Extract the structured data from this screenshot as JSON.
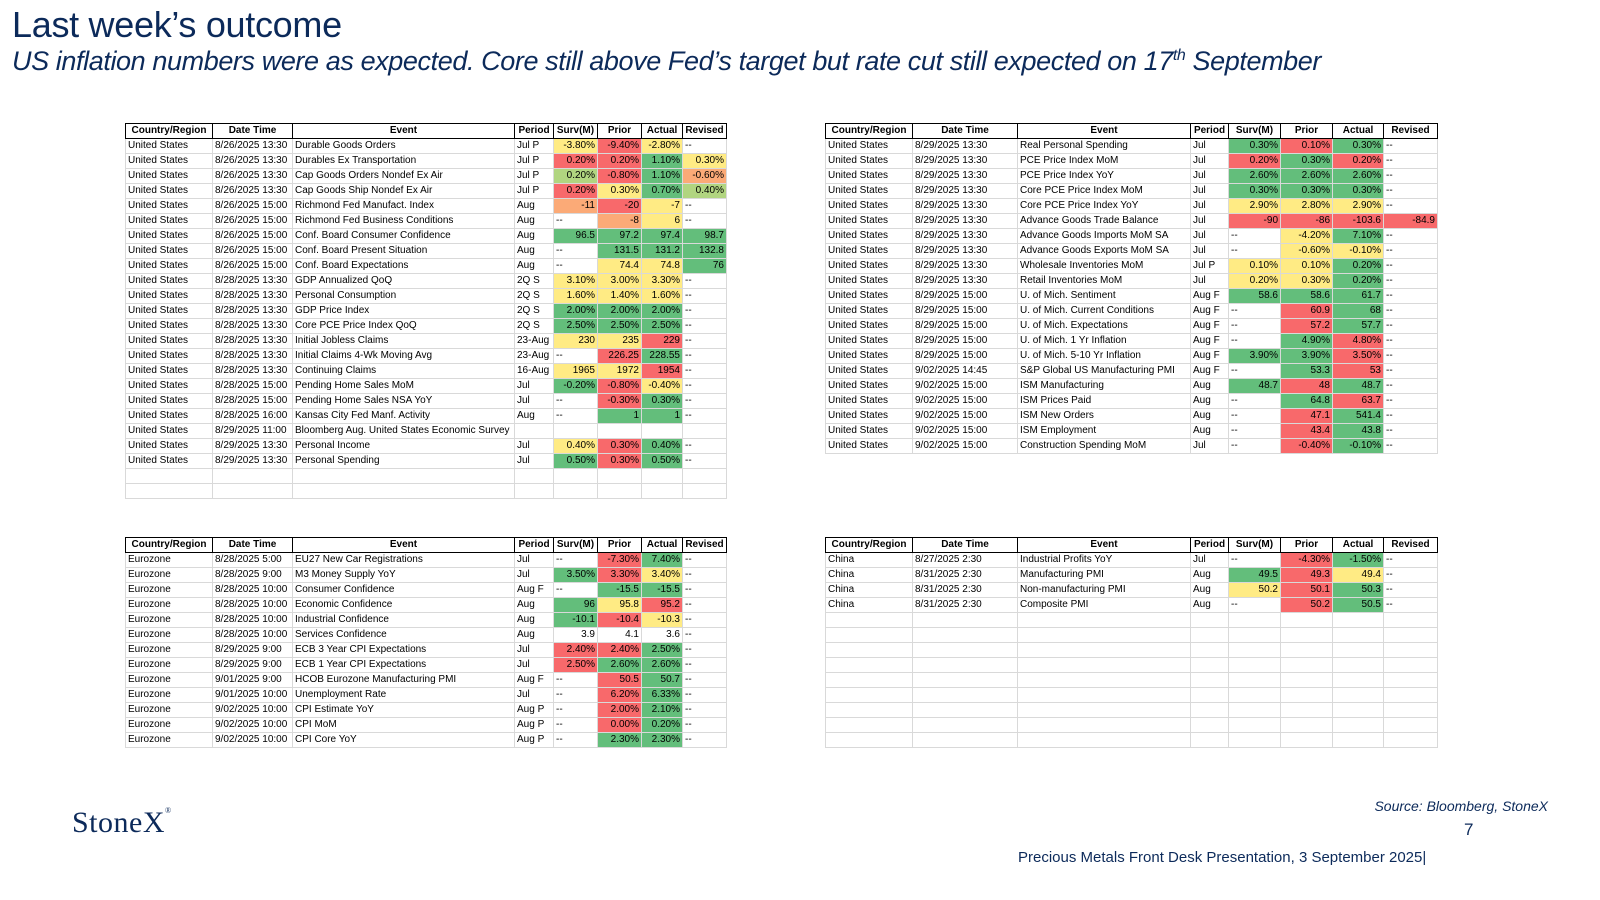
{
  "header": {
    "title": "Last week’s outcome",
    "subtitle_main": "US inflation numbers were as expected. Core still above  Fed’s target but rate cut still expected on 17",
    "subtitle_sup": "th",
    "subtitle_end": " September"
  },
  "columns": [
    "Country/Region",
    "Date Time",
    "Event",
    "Period",
    "Surv(M)",
    "Prior",
    "Actual",
    "Revised"
  ],
  "tables": [
    {
      "rows": [
        [
          "United States",
          "8/26/2025 13:30",
          "Durable Goods Orders",
          "Jul P",
          "-3.80%",
          "-9.40%",
          "-2.80%",
          "--"
        ],
        [
          "United States",
          "8/26/2025 13:30",
          "Durables Ex Transportation",
          "Jul P",
          "0.20%",
          "0.20%",
          "1.10%",
          "0.30%"
        ],
        [
          "United States",
          "8/26/2025 13:30",
          "Cap Goods Orders Nondef Ex Air",
          "Jul P",
          "0.20%",
          "-0.80%",
          "1.10%",
          "-0.60%"
        ],
        [
          "United States",
          "8/26/2025 13:30",
          "Cap Goods Ship Nondef Ex Air",
          "Jul P",
          "0.20%",
          "0.30%",
          "0.70%",
          "0.40%"
        ],
        [
          "United States",
          "8/26/2025 15:00",
          "Richmond Fed Manufact. Index",
          "Aug",
          "-11",
          "-20",
          "-7",
          "--"
        ],
        [
          "United States",
          "8/26/2025 15:00",
          "Richmond Fed Business Conditions",
          "Aug",
          "--",
          "-8",
          "6",
          "--"
        ],
        [
          "United States",
          "8/26/2025 15:00",
          "Conf. Board Consumer Confidence",
          "Aug",
          "96.5",
          "97.2",
          "97.4",
          "98.7"
        ],
        [
          "United States",
          "8/26/2025 15:00",
          "Conf. Board Present Situation",
          "Aug",
          "--",
          "131.5",
          "131.2",
          "132.8"
        ],
        [
          "United States",
          "8/26/2025 15:00",
          "Conf. Board Expectations",
          "Aug",
          "--",
          "74.4",
          "74.8",
          "76"
        ],
        [
          "United States",
          "8/28/2025 13:30",
          "GDP Annualized QoQ",
          "2Q S",
          "3.10%",
          "3.00%",
          "3.30%",
          "--"
        ],
        [
          "United States",
          "8/28/2025 13:30",
          "Personal Consumption",
          "2Q S",
          "1.60%",
          "1.40%",
          "1.60%",
          "--"
        ],
        [
          "United States",
          "8/28/2025 13:30",
          "GDP Price Index",
          "2Q S",
          "2.00%",
          "2.00%",
          "2.00%",
          "--"
        ],
        [
          "United States",
          "8/28/2025 13:30",
          "Core PCE Price Index QoQ",
          "2Q S",
          "2.50%",
          "2.50%",
          "2.50%",
          "--"
        ],
        [
          "United States",
          "8/28/2025 13:30",
          "Initial Jobless Claims",
          "23-Aug",
          "230",
          "235",
          "229",
          "--"
        ],
        [
          "United States",
          "8/28/2025 13:30",
          "Initial Claims 4-Wk Moving Avg",
          "23-Aug",
          "--",
          "226.25",
          "228.55",
          "--"
        ],
        [
          "United States",
          "8/28/2025 13:30",
          "Continuing Claims",
          "16-Aug",
          "1965",
          "1972",
          "1954",
          "--"
        ],
        [
          "United States",
          "8/28/2025 15:00",
          "Pending Home Sales MoM",
          "Jul",
          "-0.20%",
          "-0.80%",
          "-0.40%",
          "--"
        ],
        [
          "United States",
          "8/28/2025 15:00",
          "Pending Home Sales NSA YoY",
          "Jul",
          "--",
          "-0.30%",
          "0.30%",
          "--"
        ],
        [
          "United States",
          "8/28/2025 16:00",
          "Kansas City Fed Manf. Activity",
          "Aug",
          "--",
          "1",
          "1",
          "--"
        ],
        [
          "United States",
          "8/29/2025 11:00",
          "Bloomberg Aug. United States Economic Survey",
          "",
          "",
          "",
          "",
          ""
        ],
        [
          "United States",
          "8/29/2025 13:30",
          "Personal Income",
          "Jul",
          "0.40%",
          "0.30%",
          "0.40%",
          "--"
        ],
        [
          "United States",
          "8/29/2025 13:30",
          "Personal Spending",
          "Jul",
          "0.50%",
          "0.30%",
          "0.50%",
          "--"
        ]
      ],
      "colors": [
        [
          "y",
          "r",
          "y",
          ""
        ],
        [
          "r",
          "r",
          "g",
          "y"
        ],
        [
          "lg",
          "r",
          "g",
          "o"
        ],
        [
          "r",
          "y",
          "g",
          "lg"
        ],
        [
          "o",
          "r",
          "y",
          ""
        ],
        [
          "",
          "o",
          "y",
          ""
        ],
        [
          "g",
          "g",
          "g",
          "g"
        ],
        [
          "",
          "g",
          "g",
          "g"
        ],
        [
          "",
          "y",
          "y",
          "g"
        ],
        [
          "y",
          "y",
          "y",
          ""
        ],
        [
          "y",
          "y",
          "y",
          ""
        ],
        [
          "g",
          "g",
          "g",
          ""
        ],
        [
          "g",
          "g",
          "g",
          ""
        ],
        [
          "y",
          "y",
          "r",
          ""
        ],
        [
          "",
          "r",
          "g",
          ""
        ],
        [
          "y",
          "y",
          "r",
          ""
        ],
        [
          "g",
          "r",
          "y",
          ""
        ],
        [
          "",
          "r",
          "g",
          ""
        ],
        [
          "",
          "g",
          "g",
          ""
        ],
        [
          "",
          "",
          "",
          ""
        ],
        [
          "y",
          "r",
          "g",
          ""
        ],
        [
          "g",
          "r",
          "g",
          ""
        ]
      ]
    },
    {
      "rows": [
        [
          "United States",
          "8/29/2025 13:30",
          "Real Personal Spending",
          "Jul",
          "0.30%",
          "0.10%",
          "0.30%",
          "--"
        ],
        [
          "United States",
          "8/29/2025 13:30",
          "PCE Price Index MoM",
          "Jul",
          "0.20%",
          "0.30%",
          "0.20%",
          "--"
        ],
        [
          "United States",
          "8/29/2025 13:30",
          "PCE Price Index YoY",
          "Jul",
          "2.60%",
          "2.60%",
          "2.60%",
          "--"
        ],
        [
          "United States",
          "8/29/2025 13:30",
          "Core PCE Price Index MoM",
          "Jul",
          "0.30%",
          "0.30%",
          "0.30%",
          "--"
        ],
        [
          "United States",
          "8/29/2025 13:30",
          "Core PCE Price Index YoY",
          "Jul",
          "2.90%",
          "2.80%",
          "2.90%",
          "--"
        ],
        [
          "United States",
          "8/29/2025 13:30",
          "Advance Goods Trade Balance",
          "Jul",
          "-90",
          "-86",
          "-103.6",
          "-84.9"
        ],
        [
          "United States",
          "8/29/2025 13:30",
          "Advance Goods Imports MoM SA",
          "Jul",
          "--",
          "-4.20%",
          "7.10%",
          "--"
        ],
        [
          "United States",
          "8/29/2025 13:30",
          "Advance Goods Exports MoM SA",
          "Jul",
          "--",
          "-0.60%",
          "-0.10%",
          "--"
        ],
        [
          "United States",
          "8/29/2025 13:30",
          "Wholesale Inventories MoM",
          "Jul P",
          "0.10%",
          "0.10%",
          "0.20%",
          "--"
        ],
        [
          "United States",
          "8/29/2025 13:30",
          "Retail Inventories MoM",
          "Jul",
          "0.20%",
          "0.30%",
          "0.20%",
          "--"
        ],
        [
          "United States",
          "8/29/2025 15:00",
          "U. of Mich. Sentiment",
          "Aug F",
          "58.6",
          "58.6",
          "61.7",
          "--"
        ],
        [
          "United States",
          "8/29/2025 15:00",
          "U. of Mich. Current Conditions",
          "Aug F",
          "--",
          "60.9",
          "68",
          "--"
        ],
        [
          "United States",
          "8/29/2025 15:00",
          "U. of Mich. Expectations",
          "Aug F",
          "--",
          "57.2",
          "57.7",
          "--"
        ],
        [
          "United States",
          "8/29/2025 15:00",
          "U. of Mich. 1 Yr Inflation",
          "Aug F",
          "--",
          "4.90%",
          "4.80%",
          "--"
        ],
        [
          "United States",
          "8/29/2025 15:00",
          "U. of Mich. 5-10 Yr Inflation",
          "Aug F",
          "3.90%",
          "3.90%",
          "3.50%",
          "--"
        ],
        [
          "United States",
          "9/02/2025 14:45",
          "S&P Global US Manufacturing PMI",
          "Aug F",
          "--",
          "53.3",
          "53",
          "--"
        ],
        [
          "United States",
          "9/02/2025 15:00",
          "ISM Manufacturing",
          "Aug",
          "48.7",
          "48",
          "48.7",
          "--"
        ],
        [
          "United States",
          "9/02/2025 15:00",
          "ISM Prices Paid",
          "Aug",
          "--",
          "64.8",
          "63.7",
          "--"
        ],
        [
          "United States",
          "9/02/2025 15:00",
          "ISM New Orders",
          "Aug",
          "--",
          "47.1",
          "541.4",
          "--"
        ],
        [
          "United States",
          "9/02/2025 15:00",
          "ISM Employment",
          "Aug",
          "--",
          "43.4",
          "43.8",
          "--"
        ],
        [
          "United States",
          "9/02/2025 15:00",
          "Construction Spending MoM",
          "Jul",
          "--",
          "-0.40%",
          "-0.10%",
          "--"
        ]
      ],
      "colors": [
        [
          "g",
          "r",
          "g",
          ""
        ],
        [
          "r",
          "g",
          "r",
          ""
        ],
        [
          "g",
          "g",
          "g",
          ""
        ],
        [
          "g",
          "g",
          "g",
          ""
        ],
        [
          "y",
          "y",
          "y",
          ""
        ],
        [
          "r",
          "r",
          "r",
          "r"
        ],
        [
          "",
          "y",
          "g",
          ""
        ],
        [
          "",
          "y",
          "y",
          ""
        ],
        [
          "y",
          "y",
          "g",
          ""
        ],
        [
          "y",
          "y",
          "g",
          ""
        ],
        [
          "g",
          "g",
          "g",
          ""
        ],
        [
          "",
          "r",
          "g",
          ""
        ],
        [
          "",
          "r",
          "g",
          ""
        ],
        [
          "",
          "g",
          "r",
          ""
        ],
        [
          "g",
          "g",
          "r",
          ""
        ],
        [
          "",
          "g",
          "r",
          ""
        ],
        [
          "g",
          "r",
          "g",
          ""
        ],
        [
          "",
          "g",
          "r",
          ""
        ],
        [
          "",
          "r",
          "g",
          ""
        ],
        [
          "",
          "r",
          "g",
          ""
        ],
        [
          "",
          "r",
          "g",
          ""
        ]
      ]
    },
    {
      "rows": [
        [
          "Eurozone",
          "8/28/2025 5:00",
          "EU27 New Car Registrations",
          "Jul",
          "--",
          "-7.30%",
          "7.40%",
          "--"
        ],
        [
          "Eurozone",
          "8/28/2025 9:00",
          "M3 Money Supply YoY",
          "Jul",
          "3.50%",
          "3.30%",
          "3.40%",
          "--"
        ],
        [
          "Eurozone",
          "8/28/2025 10:00",
          "Consumer Confidence",
          "Aug F",
          "--",
          "-15.5",
          "-15.5",
          "--"
        ],
        [
          "Eurozone",
          "8/28/2025 10:00",
          "Economic Confidence",
          "Aug",
          "96",
          "95.8",
          "95.2",
          "--"
        ],
        [
          "Eurozone",
          "8/28/2025 10:00",
          "Industrial Confidence",
          "Aug",
          "-10.1",
          "-10.4",
          "-10.3",
          "--"
        ],
        [
          "Eurozone",
          "8/28/2025 10:00",
          "Services Confidence",
          "Aug",
          "3.9",
          "4.1",
          "3.6",
          "--"
        ],
        [
          "Eurozone",
          "8/29/2025 9:00",
          "ECB 3 Year CPI Expectations",
          "Jul",
          "2.40%",
          "2.40%",
          "2.50%",
          "--"
        ],
        [
          "Eurozone",
          "8/29/2025 9:00",
          "ECB 1 Year CPI Expectations",
          "Jul",
          "2.50%",
          "2.60%",
          "2.60%",
          "--"
        ],
        [
          "Eurozone",
          "9/01/2025 9:00",
          "HCOB Eurozone Manufacturing PMI",
          "Aug F",
          "--",
          "50.5",
          "50.7",
          "--"
        ],
        [
          "Eurozone",
          "9/01/2025 10:00",
          "Unemployment Rate",
          "Jul",
          "--",
          "6.20%",
          "6.33%",
          "--"
        ],
        [
          "Eurozone",
          "9/02/2025 10:00",
          "CPI Estimate YoY",
          "Aug P",
          "--",
          "2.00%",
          "2.10%",
          "--"
        ],
        [
          "Eurozone",
          "9/02/2025 10:00",
          "CPI MoM",
          "Aug P",
          "--",
          "0.00%",
          "0.20%",
          "--"
        ],
        [
          "Eurozone",
          "9/02/2025 10:00",
          "CPI Core YoY",
          "Aug P",
          "--",
          "2.30%",
          "2.30%",
          "--"
        ]
      ],
      "colors": [
        [
          "",
          "r",
          "g",
          ""
        ],
        [
          "g",
          "r",
          "y",
          ""
        ],
        [
          "",
          "g",
          "g",
          ""
        ],
        [
          "g",
          "y",
          "r",
          ""
        ],
        [
          "g",
          "r",
          "y",
          ""
        ],
        [
          "",
          "",
          "",
          ""
        ],
        [
          "r",
          "r",
          "g",
          ""
        ],
        [
          "r",
          "g",
          "g",
          ""
        ],
        [
          "",
          "r",
          "g",
          ""
        ],
        [
          "",
          "r",
          "g",
          ""
        ],
        [
          "",
          "r",
          "g",
          ""
        ],
        [
          "",
          "r",
          "g",
          ""
        ],
        [
          "",
          "g",
          "g",
          ""
        ]
      ]
    },
    {
      "rows": [
        [
          "China",
          "8/27/2025 2:30",
          "Industrial Profits YoY",
          "Jul",
          "--",
          "-4.30%",
          "-1.50%",
          "--"
        ],
        [
          "China",
          "8/31/2025 2:30",
          "Manufacturing PMI",
          "Aug",
          "49.5",
          "49.3",
          "49.4",
          "--"
        ],
        [
          "China",
          "8/31/2025 2:30",
          "Non-manufacturing PMI",
          "Aug",
          "50.2",
          "50.1",
          "50.3",
          "--"
        ],
        [
          "China",
          "8/31/2025 2:30",
          "Composite PMI",
          "Aug",
          "--",
          "50.2",
          "50.5",
          "--"
        ]
      ],
      "colors": [
        [
          "",
          "r",
          "g",
          ""
        ],
        [
          "g",
          "r",
          "y",
          ""
        ],
        [
          "y",
          "r",
          "g",
          ""
        ],
        [
          "",
          "r",
          "g",
          ""
        ]
      ]
    }
  ],
  "footer": {
    "logo": "StoneX",
    "logo_mark": "®",
    "source": "Source: Bloomberg, StoneX",
    "page_number": "7",
    "presentation": "Precious Metals Front Desk Presentation, 3 September 2025|"
  }
}
